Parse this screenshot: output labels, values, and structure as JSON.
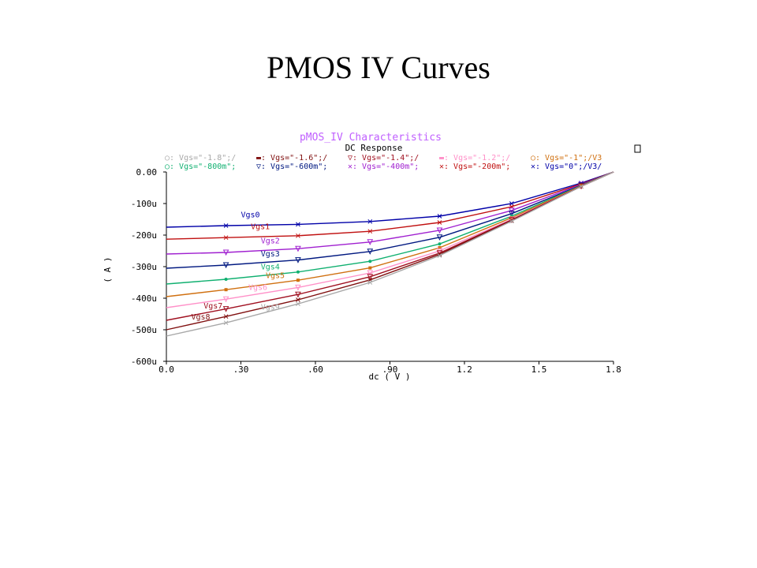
{
  "slide_title": "PMOS IV Curves",
  "chart_data": {
    "type": "line",
    "title": "pMOS_IV Characteristics",
    "subtitle": "DC Response",
    "xlabel": "dc ( V )",
    "ylabel": "( A )",
    "xlim": [
      0.0,
      1.8
    ],
    "ylim": [
      -600,
      0
    ],
    "y_unit": "u",
    "x_ticks": [
      "0.0",
      ".30",
      ".60",
      ".90",
      "1.2",
      "1.5",
      "1.8"
    ],
    "y_ticks": [
      "0.00",
      "-100u",
      "-200u",
      "-300u",
      "-400u",
      "-500u",
      "-600u"
    ],
    "grid": false,
    "legend_position": "top",
    "legend_entries": [
      "○: Vgs=\"-1.8\";/",
      "▬: Vgs=\"-1.6\";/",
      "▽: Vgs=\"-1.4\";/",
      "▬: Vgs=\"-1.2\";/",
      "○: Vgs=\"-1\";/V3",
      "○: Vgs=\"-800m\";",
      "▽: Vgs=\"-600m\";",
      "✕: Vgs=\"-400m\";",
      "✕: Vgs=\"-200m\";",
      "✕: Vgs=\"0\";/V3/"
    ],
    "x": [
      0.0,
      0.24,
      0.53,
      0.82,
      1.1,
      1.39,
      1.67,
      1.8
    ],
    "series": [
      {
        "name": "Vgs0",
        "color": "#0000a8",
        "marker": "x",
        "values": [
          -175,
          -170,
          -166,
          -157,
          -140,
          -100,
          -35,
          0
        ]
      },
      {
        "name": "Vgs1",
        "color": "#c01010",
        "marker": "x",
        "values": [
          -213,
          -208,
          -202,
          -188,
          -160,
          -110,
          -38,
          0
        ]
      },
      {
        "name": "Vgs2",
        "color": "#a020d0",
        "marker": "tri",
        "values": [
          -260,
          -255,
          -243,
          -222,
          -185,
          -122,
          -40,
          0
        ]
      },
      {
        "name": "Vgs3",
        "color": "#001880",
        "marker": "tri",
        "values": [
          -305,
          -295,
          -279,
          -252,
          -207,
          -132,
          -42,
          0
        ]
      },
      {
        "name": "Vgs4",
        "color": "#10b070",
        "marker": "dot",
        "values": [
          -355,
          -340,
          -317,
          -283,
          -228,
          -140,
          -43,
          0
        ]
      },
      {
        "name": "Vgs5",
        "color": "#d07010",
        "marker": "sq",
        "values": [
          -395,
          -373,
          -343,
          -304,
          -240,
          -145,
          -44,
          0
        ]
      },
      {
        "name": "Vgs6",
        "color": "#ff90c8",
        "marker": "tri",
        "values": [
          -430,
          -403,
          -366,
          -320,
          -250,
          -150,
          -45,
          0
        ]
      },
      {
        "name": "Vgs7",
        "color": "#a01020",
        "marker": "tri",
        "values": [
          -470,
          -434,
          -388,
          -332,
          -257,
          -152,
          -45,
          0
        ]
      },
      {
        "name": "Vgs8",
        "color": "#801010",
        "marker": "x",
        "values": [
          -500,
          -458,
          -405,
          -342,
          -261,
          -154,
          -46,
          0
        ]
      },
      {
        "name": "Vgs9",
        "color": "#a8a8a8",
        "marker": "x",
        "values": [
          -520,
          -478,
          -418,
          -350,
          -265,
          -156,
          -46,
          0
        ]
      }
    ]
  }
}
